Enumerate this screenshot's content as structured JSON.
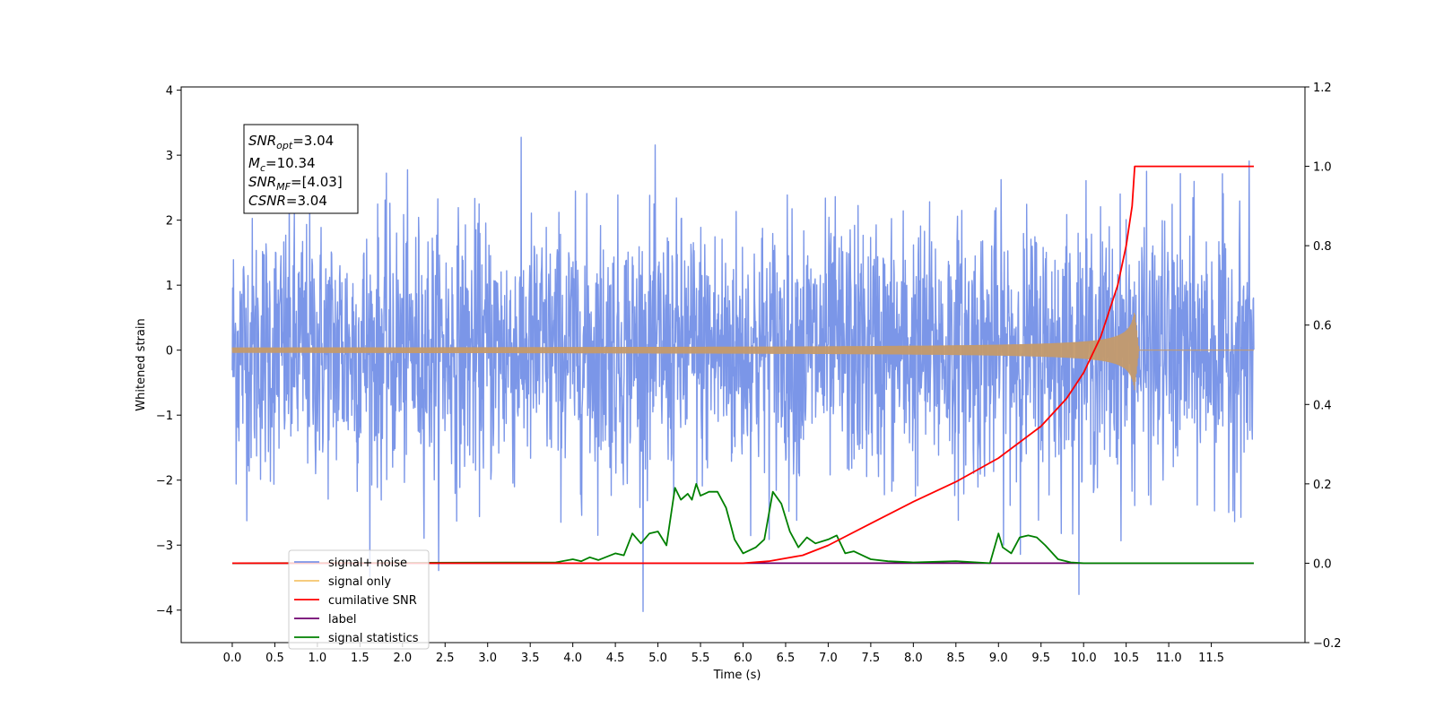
{
  "chart_data": {
    "type": "line",
    "xlabel": "Time (s)",
    "ylabel": "Whitened strain",
    "xlim": [
      -0.6,
      12.6
    ],
    "ylim": [
      -4.5,
      4.05
    ],
    "y2lim": [
      -0.2,
      1.2
    ],
    "x_ticks": [
      "0.0",
      "0.5",
      "1.0",
      "1.5",
      "2.0",
      "2.5",
      "3.0",
      "3.5",
      "4.0",
      "4.5",
      "5.0",
      "5.5",
      "6.0",
      "6.5",
      "7.0",
      "7.5",
      "8.0",
      "8.5",
      "9.0",
      "9.5",
      "10.0",
      "10.5",
      "11.0",
      "11.5"
    ],
    "y_ticks": [
      "4",
      "3",
      "2",
      "1",
      "0",
      "−1",
      "−2",
      "−3",
      "−4"
    ],
    "y2_ticks": [
      "1.2",
      "1.0",
      "0.8",
      "0.6",
      "0.4",
      "0.2",
      "0.0",
      "−0.2"
    ],
    "legend_position": "lower-left",
    "legend": [
      {
        "label": "signal+ noise",
        "color": "#7b96e8"
      },
      {
        "label": "signal only",
        "color": "#f5c46b"
      },
      {
        "label": "cumilative SNR",
        "color": "#ff0000"
      },
      {
        "label": "label",
        "color": "#6e006e"
      },
      {
        "label": "signal statistics",
        "color": "#008000"
      }
    ],
    "annotation": {
      "snr_opt": {
        "symbol": "SNR",
        "sub": "opt",
        "value": "=3.04"
      },
      "mc": {
        "symbol": "M",
        "sub": "c",
        "value": "=10.34"
      },
      "snr_mf": {
        "symbol": "SNR",
        "sub": "MF",
        "value": "=[4.03]"
      },
      "csnr": {
        "symbol": "CSNR",
        "value": "=3.04"
      }
    },
    "series": [
      {
        "name": "signal+ noise",
        "axis": "left",
        "color": "#7b96e8",
        "x_range": [
          0.0,
          12.0
        ],
        "peak_max": 3.67,
        "peak_min": -4.1
      },
      {
        "name": "signal only",
        "axis": "left",
        "color": "#c49a6c",
        "x_range": [
          0.0,
          12.0
        ],
        "peak_time": 10.6,
        "peak_amplitude": 0.6
      },
      {
        "name": "cumilative SNR",
        "axis": "right",
        "x": [
          0.0,
          6.0,
          6.3,
          6.7,
          7.0,
          7.5,
          8.0,
          8.5,
          9.0,
          9.5,
          9.8,
          10.0,
          10.2,
          10.4,
          10.5,
          10.57,
          10.6,
          12.0
        ],
        "y": [
          0.0,
          0.0,
          0.005,
          0.02,
          0.045,
          0.1,
          0.155,
          0.205,
          0.265,
          0.345,
          0.415,
          0.48,
          0.57,
          0.7,
          0.8,
          0.9,
          1.0,
          1.0
        ]
      },
      {
        "name": "label",
        "axis": "right",
        "color": "#6e006e",
        "x": [
          0.0,
          12.0
        ],
        "y": [
          0.0,
          0.0
        ]
      },
      {
        "name": "signal statistics",
        "axis": "right",
        "color": "#008000",
        "x": [
          0.0,
          3.8,
          4.0,
          4.1,
          4.2,
          4.3,
          4.5,
          4.6,
          4.7,
          4.8,
          4.9,
          5.0,
          5.1,
          5.2,
          5.27,
          5.35,
          5.4,
          5.45,
          5.5,
          5.55,
          5.6,
          5.7,
          5.8,
          5.85,
          5.9,
          6.0,
          6.15,
          6.25,
          6.35,
          6.45,
          6.55,
          6.65,
          6.75,
          6.85,
          7.0,
          7.1,
          7.2,
          7.3,
          7.4,
          7.5,
          7.7,
          8.0,
          8.5,
          8.9,
          9.0,
          9.05,
          9.15,
          9.25,
          9.35,
          9.45,
          9.55,
          9.7,
          9.85,
          10.0,
          12.0
        ],
        "y": [
          0.0,
          0.002,
          0.01,
          0.005,
          0.015,
          0.008,
          0.025,
          0.02,
          0.075,
          0.05,
          0.075,
          0.08,
          0.045,
          0.19,
          0.16,
          0.175,
          0.16,
          0.2,
          0.17,
          0.175,
          0.18,
          0.18,
          0.14,
          0.1,
          0.06,
          0.025,
          0.04,
          0.06,
          0.18,
          0.15,
          0.08,
          0.04,
          0.065,
          0.05,
          0.06,
          0.07,
          0.025,
          0.03,
          0.02,
          0.01,
          0.005,
          0.002,
          0.005,
          0.0,
          0.075,
          0.04,
          0.025,
          0.065,
          0.07,
          0.065,
          0.045,
          0.01,
          0.002,
          0.0,
          0.0
        ]
      }
    ]
  }
}
